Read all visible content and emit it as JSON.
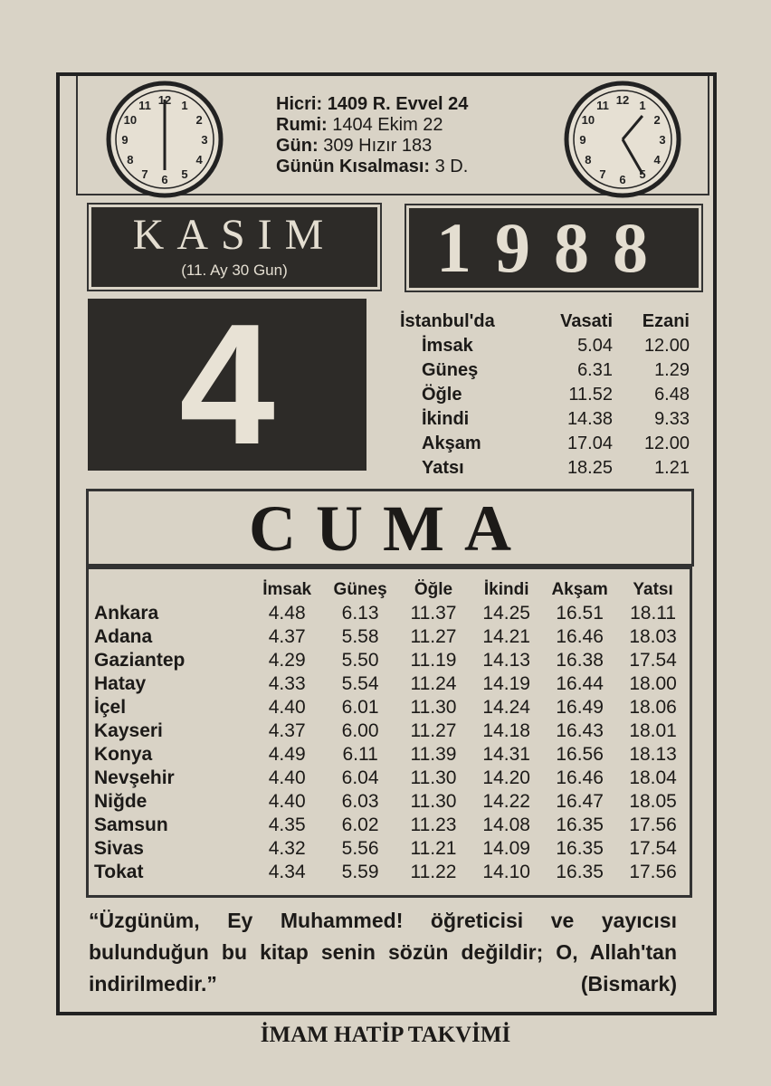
{
  "header": {
    "hijri_label": "Hicri:",
    "hijri_value": "1409 R. Evvel 24",
    "rumi_label": "Rumi:",
    "rumi_value": "1404 Ekim 22",
    "gun_label": "Gün:",
    "gun_value": "309 Hızır 183",
    "kisalma_label": "Günün Kısalması:",
    "kisalma_value": "3 D."
  },
  "clocks": {
    "left_icon": "clock-icon",
    "right_icon": "clock-icon"
  },
  "month": {
    "name": "KASIM",
    "sub": "(11. Ay 30 Gun)"
  },
  "year": "1988",
  "day_number": "4",
  "weekday": "CUMA",
  "istanbul": {
    "title": "İstanbul'da",
    "col1": "Vasati",
    "col2": "Ezani",
    "rows": [
      {
        "name": "İmsak",
        "vasati": "5.04",
        "ezani": "12.00"
      },
      {
        "name": "Güneş",
        "vasati": "6.31",
        "ezani": "1.29"
      },
      {
        "name": "Öğle",
        "vasati": "11.52",
        "ezani": "6.48"
      },
      {
        "name": "İkindi",
        "vasati": "14.38",
        "ezani": "9.33"
      },
      {
        "name": "Akşam",
        "vasati": "17.04",
        "ezani": "12.00"
      },
      {
        "name": "Yatsı",
        "vasati": "18.25",
        "ezani": "1.21"
      }
    ]
  },
  "cities": {
    "headers": [
      "İmsak",
      "Güneş",
      "Öğle",
      "İkindi",
      "Akşam",
      "Yatsı"
    ],
    "rows": [
      {
        "city": "Ankara",
        "times": [
          "4.48",
          "6.13",
          "11.37",
          "14.25",
          "16.51",
          "18.11"
        ]
      },
      {
        "city": "Adana",
        "times": [
          "4.37",
          "5.58",
          "11.27",
          "14.21",
          "16.46",
          "18.03"
        ]
      },
      {
        "city": "Gaziantep",
        "times": [
          "4.29",
          "5.50",
          "11.19",
          "14.13",
          "16.38",
          "17.54"
        ]
      },
      {
        "city": "Hatay",
        "times": [
          "4.33",
          "5.54",
          "11.24",
          "14.19",
          "16.44",
          "18.00"
        ]
      },
      {
        "city": "İçel",
        "times": [
          "4.40",
          "6.01",
          "11.30",
          "14.24",
          "16.49",
          "18.06"
        ]
      },
      {
        "city": "Kayseri",
        "times": [
          "4.37",
          "6.00",
          "11.27",
          "14.18",
          "16.43",
          "18.01"
        ]
      },
      {
        "city": "Konya",
        "times": [
          "4.49",
          "6.11",
          "11.39",
          "14.31",
          "16.56",
          "18.13"
        ]
      },
      {
        "city": "Nevşehir",
        "times": [
          "4.40",
          "6.04",
          "11.30",
          "14.20",
          "16.46",
          "18.04"
        ]
      },
      {
        "city": "Niğde",
        "times": [
          "4.40",
          "6.03",
          "11.30",
          "14.22",
          "16.47",
          "18.05"
        ]
      },
      {
        "city": "Samsun",
        "times": [
          "4.35",
          "6.02",
          "11.23",
          "14.08",
          "16.35",
          "17.56"
        ]
      },
      {
        "city": "Sivas",
        "times": [
          "4.32",
          "5.56",
          "11.21",
          "14.09",
          "16.35",
          "17.54"
        ]
      },
      {
        "city": "Tokat",
        "times": [
          "4.34",
          "5.59",
          "11.22",
          "14.10",
          "16.35",
          "17.56"
        ]
      }
    ]
  },
  "quote": {
    "text": "“Üzgünüm, Ey Muhammed! öğreticisi ve yayıcısı bulunduğun bu kitap senin sözün değildir; O, Allah'tan indirilmedir.”",
    "author": "(Bismark)"
  },
  "footer": "İMAM HATİP TAKVİMİ",
  "colors": {
    "paper": "#d9d3c6",
    "ink": "#1c1a18",
    "dark_box": "#2d2b28"
  }
}
